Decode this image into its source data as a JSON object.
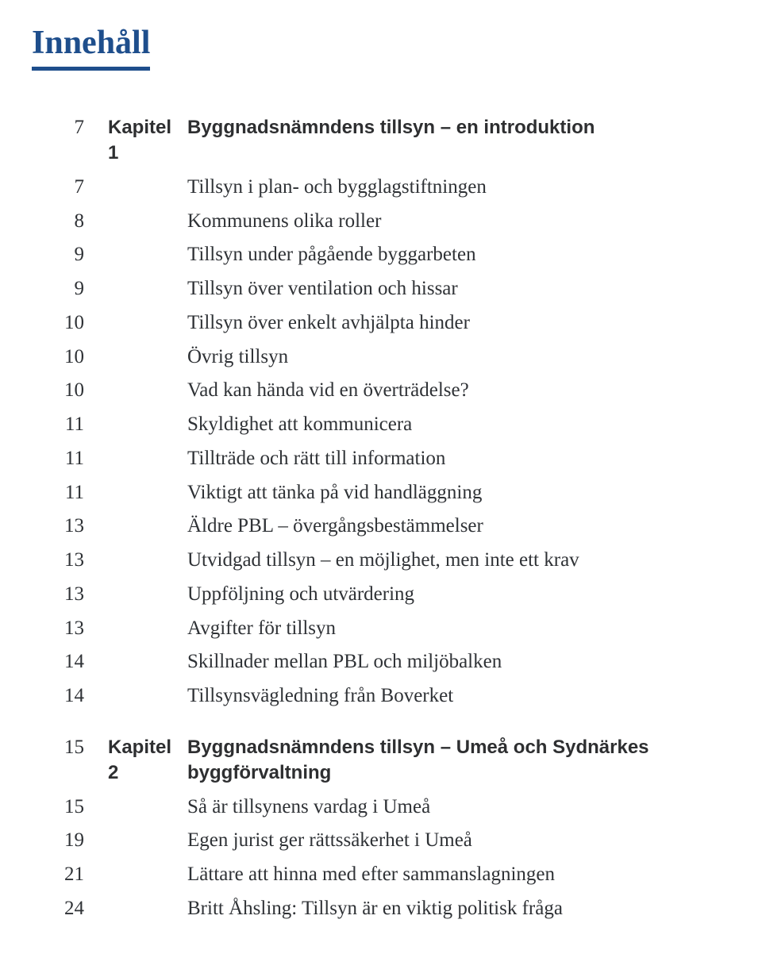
{
  "title": "Innehåll",
  "colors": {
    "accent": "#1e4e8c",
    "text": "#2f3236",
    "bold_text": "#2e2f31",
    "background": "#ffffff"
  },
  "typography": {
    "title_fontsize": 42,
    "row_fontsize": 25,
    "bold_fontsize": 24,
    "title_underline_width": 5
  },
  "groups": [
    {
      "rows": [
        {
          "page": "7",
          "chapter": "Kapitel 1",
          "text": "Byggnadsnämndens tillsyn – en introduktion",
          "bold": true
        },
        {
          "page": "7",
          "chapter": "",
          "text": "Tillsyn i plan- och bygglagstiftningen",
          "bold": false
        },
        {
          "page": "8",
          "chapter": "",
          "text": "Kommunens olika roller",
          "bold": false
        },
        {
          "page": "9",
          "chapter": "",
          "text": "Tillsyn under pågående byggarbeten",
          "bold": false
        },
        {
          "page": "9",
          "chapter": "",
          "text": "Tillsyn över ventilation och hissar",
          "bold": false
        },
        {
          "page": "10",
          "chapter": "",
          "text": "Tillsyn över enkelt avhjälpta hinder",
          "bold": false
        },
        {
          "page": "10",
          "chapter": "",
          "text": "Övrig tillsyn",
          "bold": false
        },
        {
          "page": "10",
          "chapter": "",
          "text": "Vad kan hända vid en överträdelse?",
          "bold": false
        },
        {
          "page": "11",
          "chapter": "",
          "text": "Skyldighet att kommunicera",
          "bold": false
        },
        {
          "page": "11",
          "chapter": "",
          "text": "Tillträde och rätt till information",
          "bold": false
        },
        {
          "page": "11",
          "chapter": "",
          "text": "Viktigt att tänka på vid handläggning",
          "bold": false
        },
        {
          "page": "13",
          "chapter": "",
          "text": "Äldre PBL – övergångsbestämmelser",
          "bold": false
        },
        {
          "page": "13",
          "chapter": "",
          "text": "Utvidgad tillsyn – en möjlighet, men inte ett krav",
          "bold": false
        },
        {
          "page": "13",
          "chapter": "",
          "text": "Uppföljning och utvärdering",
          "bold": false
        },
        {
          "page": "13",
          "chapter": "",
          "text": "Avgifter för tillsyn",
          "bold": false
        },
        {
          "page": "14",
          "chapter": "",
          "text": "Skillnader mellan PBL och miljöbalken",
          "bold": false
        },
        {
          "page": "14",
          "chapter": "",
          "text": "Tillsynsvägledning från Boverket",
          "bold": false
        }
      ]
    },
    {
      "rows": [
        {
          "page": "15",
          "chapter": "Kapitel 2",
          "text": "Byggnadsnämndens tillsyn – Umeå och Sydnärkes byggförvaltning",
          "bold": true
        },
        {
          "page": "15",
          "chapter": "",
          "text": "Så är tillsynens vardag i Umeå",
          "bold": false
        },
        {
          "page": "19",
          "chapter": "",
          "text": "Egen jurist ger rättssäkerhet i Umeå",
          "bold": false
        },
        {
          "page": "21",
          "chapter": "",
          "text": "Lättare att hinna med efter sammanslagningen",
          "bold": false
        },
        {
          "page": "24",
          "chapter": "",
          "text": "Britt Åhsling: Tillsyn är en viktig politisk fråga",
          "bold": false
        }
      ]
    }
  ]
}
